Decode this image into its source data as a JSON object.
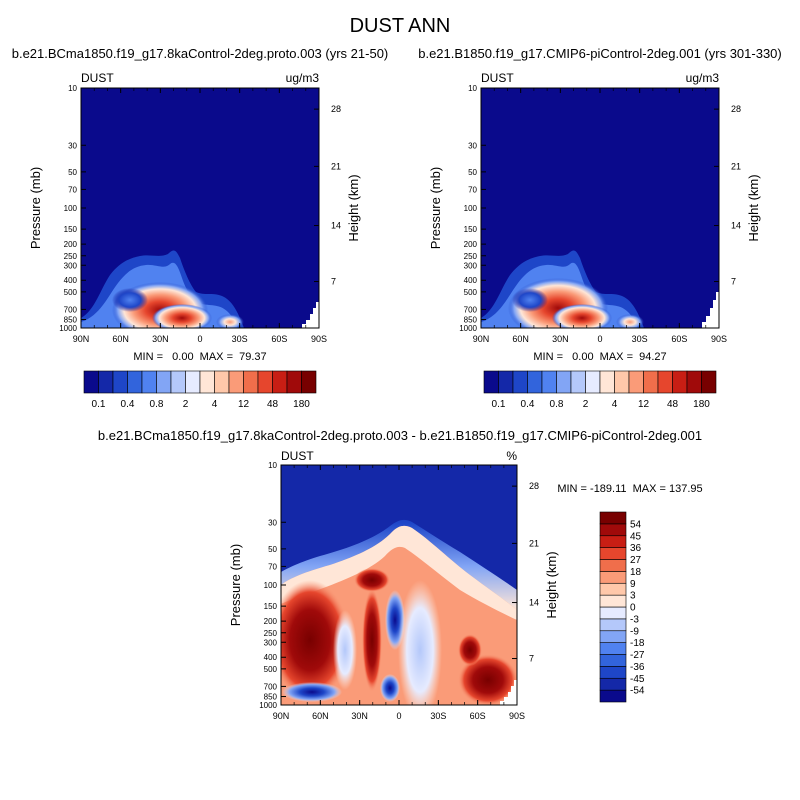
{
  "page_title": "DUST ANN",
  "chart_data": [
    {
      "type": "heatmap",
      "title": "b.e21.BCma1850.f19_g17.8kaControl-2deg.proto.003 (yrs 21-50)",
      "left_label": "DUST",
      "right_label": "ug/m3",
      "xlabel": "",
      "ylabel": "Pressure (mb)",
      "y2label": "Height (km)",
      "x_ticks": [
        "90N",
        "60N",
        "30N",
        "0",
        "30S",
        "60S",
        "90S"
      ],
      "y_ticks": [
        "10",
        "30",
        "50",
        "70",
        "100",
        "150",
        "200",
        "250",
        "300",
        "400",
        "500",
        "700",
        "850",
        "1000"
      ],
      "y2_ticks": [
        "28",
        "21",
        "14",
        "7"
      ],
      "y_scale": "log",
      "ylim": [
        1000,
        10
      ],
      "stats": {
        "min": "0.00",
        "max": "79.37"
      },
      "stats_text": "MIN =   0.00  MAX =  79.37",
      "colorbar": {
        "orientation": "horizontal",
        "levels": [
          "0.1",
          "0.2",
          "0.4",
          "0.6",
          "0.8",
          "1",
          "2",
          "3",
          "4",
          "8",
          "12",
          "24",
          "48",
          "100",
          "180"
        ],
        "shown_labels": [
          "0.1",
          "0.4",
          "0.8",
          "2",
          "4",
          "12",
          "48",
          "180"
        ],
        "colors": [
          "#0a0a8c",
          "#1428a8",
          "#1e46c8",
          "#3264dc",
          "#5082f0",
          "#82a5f5",
          "#b4c8fa",
          "#e6ebff",
          "#ffe6d7",
          "#ffc8aa",
          "#fa9b78",
          "#f06e4b",
          "#e6462d",
          "#c81e14",
          "#a00a0a",
          "#780000"
        ]
      },
      "cells": [
        {
          "lat": 75,
          "p": 850,
          "v": 4
        },
        {
          "lat": 60,
          "p": 850,
          "v": 8
        },
        {
          "lat": 45,
          "p": 700,
          "v": 12
        },
        {
          "lat": 35,
          "p": 700,
          "v": 24
        },
        {
          "lat": 25,
          "p": 700,
          "v": 48
        },
        {
          "lat": 15,
          "p": 850,
          "v": 24
        },
        {
          "lat": 30,
          "p": 400,
          "v": 2
        },
        {
          "lat": 15,
          "p": 300,
          "v": 0.8
        },
        {
          "lat": -20,
          "p": 850,
          "v": 2
        }
      ]
    },
    {
      "type": "heatmap",
      "title": "b.e21.B1850.f19_g17.CMIP6-piControl-2deg.001 (yrs 301-330)",
      "left_label": "DUST",
      "right_label": "ug/m3",
      "xlabel": "",
      "ylabel": "Pressure (mb)",
      "y2label": "Height (km)",
      "x_ticks": [
        "90N",
        "60N",
        "30N",
        "0",
        "30S",
        "60S",
        "90S"
      ],
      "y_ticks": [
        "10",
        "30",
        "50",
        "70",
        "100",
        "150",
        "200",
        "250",
        "300",
        "400",
        "500",
        "700",
        "850",
        "1000"
      ],
      "y2_ticks": [
        "28",
        "21",
        "14",
        "7"
      ],
      "y_scale": "log",
      "ylim": [
        1000,
        10
      ],
      "stats": {
        "min": "0.00",
        "max": "94.27"
      },
      "stats_text": "MIN =   0.00  MAX =  94.27",
      "colorbar": {
        "orientation": "horizontal",
        "levels": [
          "0.1",
          "0.2",
          "0.4",
          "0.6",
          "0.8",
          "1",
          "2",
          "3",
          "4",
          "8",
          "12",
          "24",
          "48",
          "100",
          "180"
        ],
        "shown_labels": [
          "0.1",
          "0.4",
          "0.8",
          "2",
          "4",
          "12",
          "48",
          "180"
        ],
        "colors": [
          "#0a0a8c",
          "#1428a8",
          "#1e46c8",
          "#3264dc",
          "#5082f0",
          "#82a5f5",
          "#b4c8fa",
          "#e6ebff",
          "#ffe6d7",
          "#ffc8aa",
          "#fa9b78",
          "#f06e4b",
          "#e6462d",
          "#c81e14",
          "#a00a0a",
          "#780000"
        ]
      },
      "cells": [
        {
          "lat": 75,
          "p": 850,
          "v": 4
        },
        {
          "lat": 60,
          "p": 850,
          "v": 8
        },
        {
          "lat": 45,
          "p": 700,
          "v": 24
        },
        {
          "lat": 35,
          "p": 700,
          "v": 48
        },
        {
          "lat": 25,
          "p": 700,
          "v": 48
        },
        {
          "lat": 15,
          "p": 850,
          "v": 24
        },
        {
          "lat": 30,
          "p": 400,
          "v": 3
        },
        {
          "lat": 15,
          "p": 300,
          "v": 0.8
        },
        {
          "lat": -20,
          "p": 850,
          "v": 2
        }
      ]
    },
    {
      "type": "heatmap",
      "title": "b.e21.BCma1850.f19_g17.8kaControl-2deg.proto.003 - b.e21.B1850.f19_g17.CMIP6-piControl-2deg.001",
      "left_label": "DUST",
      "right_label": "%",
      "xlabel": "",
      "ylabel": "Pressure (mb)",
      "y2label": "Height (km)",
      "x_ticks": [
        "90N",
        "60N",
        "30N",
        "0",
        "30S",
        "60S",
        "90S"
      ],
      "y_ticks": [
        "10",
        "30",
        "50",
        "70",
        "100",
        "150",
        "200",
        "250",
        "300",
        "400",
        "500",
        "700",
        "850",
        "1000"
      ],
      "y2_ticks": [
        "28",
        "21",
        "14",
        "7"
      ],
      "y_scale": "log",
      "ylim": [
        1000,
        10
      ],
      "stats": {
        "min": "-189.11",
        "max": "137.95"
      },
      "stats_text": "MIN = -189.11  MAX = 137.95",
      "colorbar": {
        "orientation": "vertical",
        "levels": [
          "-54",
          "-45",
          "-36",
          "-27",
          "-18",
          "-9",
          "-3",
          "0",
          "3",
          "9",
          "18",
          "27",
          "36",
          "45",
          "54"
        ],
        "shown_labels": [
          "-54",
          "-45",
          "-36",
          "-27",
          "-18",
          "-9",
          "-3",
          "0",
          "3",
          "9",
          "18",
          "27",
          "36",
          "45",
          "54"
        ],
        "colors": [
          "#0a0a8c",
          "#1428a8",
          "#1e46c8",
          "#3264dc",
          "#5082f0",
          "#82a5f5",
          "#b4c8fa",
          "#e6ebff",
          "#ffe6d7",
          "#ffc8aa",
          "#fa9b78",
          "#f06e4b",
          "#e6462d",
          "#c81e14",
          "#a00a0a",
          "#780000"
        ]
      },
      "cells": [
        {
          "lat": 75,
          "p": 250,
          "v": 54
        },
        {
          "lat": 60,
          "p": 100,
          "v": 27
        },
        {
          "lat": 30,
          "p": 70,
          "v": 36
        },
        {
          "lat": 20,
          "p": 250,
          "v": 54
        },
        {
          "lat": 0,
          "p": 200,
          "v": -45
        },
        {
          "lat": 0,
          "p": 700,
          "v": -54
        },
        {
          "lat": -30,
          "p": 200,
          "v": 9
        },
        {
          "lat": -50,
          "p": 500,
          "v": 45
        },
        {
          "lat": -60,
          "p": 700,
          "v": 54
        },
        {
          "lat": 50,
          "p": 600,
          "v": -18
        }
      ]
    }
  ]
}
